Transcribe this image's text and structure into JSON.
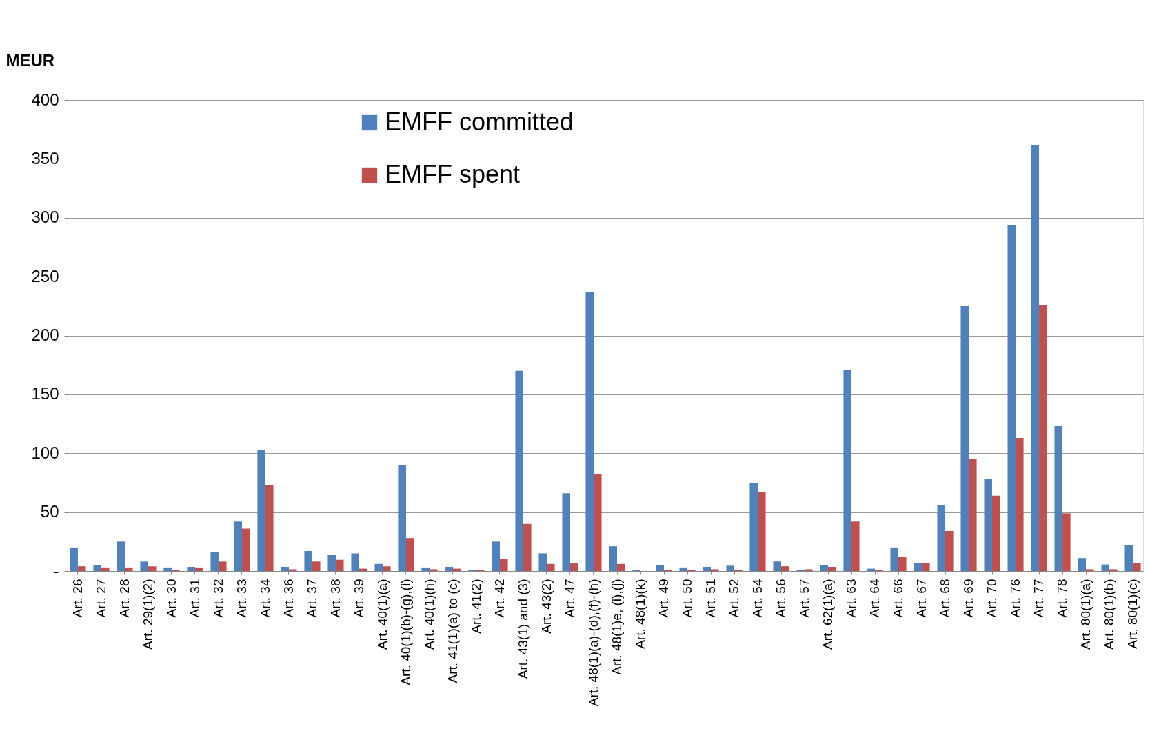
{
  "chart_data": {
    "type": "bar",
    "ylabel": "MEUR",
    "categories": [
      "Art. 26",
      "Art. 27",
      "Art. 28",
      "Art. 29(1)(2)",
      "Art. 30",
      "Art. 31",
      "Art. 32",
      "Art. 33",
      "Art. 34",
      "Art. 36",
      "Art. 37",
      "Art. 38",
      "Art. 39",
      "Art. 40(1)(a)",
      "Art. 40(1)(b)-(g),(i)",
      "Art. 40(1)(h)",
      "Art. 41(1)(a) to (c)",
      "Art. 41(2)",
      "Art. 42",
      "Art. 43(1) and (3)",
      "Art. 43(2)",
      "Art. 47",
      "Art. 48(1)(a)-(d),(f)-(h)",
      "Art. 48(1)e, (i),(j)",
      "Art. 48(1)(k)",
      "Art. 49",
      "Art. 50",
      "Art. 51",
      "Art. 52",
      "Art. 54",
      "Art. 56",
      "Art. 57",
      "Art. 62(1)(a)",
      "Art. 63",
      "Art. 64",
      "Art. 66",
      "Art. 67",
      "Art. 68",
      "Art. 69",
      "Art. 70",
      "Art. 76",
      "Art. 77",
      "Art. 78",
      "Art. 80(1)(a)",
      "Art. 80(1)(b)",
      "Art. 80(1)(c)"
    ],
    "series": [
      {
        "name": "EMFF committed",
        "color": "#4f81bd",
        "values": [
          20,
          5,
          25,
          8,
          3,
          3.5,
          16,
          42,
          103,
          3.5,
          17,
          13.5,
          15,
          6,
          90,
          3,
          3.5,
          1,
          25,
          170,
          15,
          66,
          237,
          21,
          1,
          5,
          3,
          3.5,
          4.5,
          75,
          8,
          1,
          5,
          171,
          2,
          20,
          7,
          56,
          225,
          78,
          294,
          362,
          123,
          11,
          5.5,
          22
        ]
      },
      {
        "name": "EMFF spent",
        "color": "#c0504d",
        "values": [
          4,
          3,
          3,
          4,
          1,
          3,
          8,
          36,
          73,
          1.5,
          8,
          9.5,
          2,
          4,
          28,
          1.5,
          2,
          1,
          10,
          40,
          6,
          7,
          82,
          6,
          0,
          1,
          1,
          1.5,
          1,
          67,
          4,
          1.5,
          3.5,
          42,
          1,
          12,
          6.5,
          34,
          95,
          64,
          113,
          226,
          49,
          1.5,
          1.5,
          7
        ]
      }
    ],
    "ylim": [
      0,
      400
    ],
    "yticks": [
      {
        "value": 0,
        "label": "-"
      },
      50,
      100,
      150,
      200,
      250,
      300,
      350,
      400
    ],
    "grid": "y",
    "legend": "top left"
  }
}
